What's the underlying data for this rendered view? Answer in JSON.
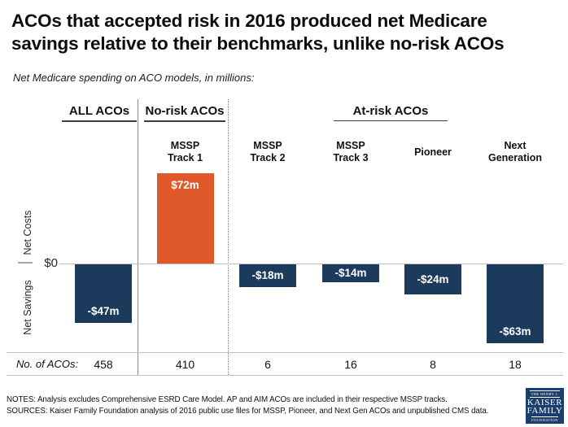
{
  "title_lines": [
    "ACOs that accepted risk in 2016 produced net Medicare",
    "savings relative to their benchmarks, unlike no-risk ACOs"
  ],
  "subtitle": "Net Medicare spending on ACO models, in millions:",
  "section_headers": {
    "all": "ALL ACOs",
    "no_risk": "No-risk ACOs",
    "at_risk": "At-risk ACOs"
  },
  "axis": {
    "zero_label": "$0",
    "upper_label": "Net Costs",
    "lower_label": "Net Savings"
  },
  "footer_row_label": "No. of ACOs:",
  "notes": "NOTES: Analysis excludes Comprehensive ESRD Care Model.  AP and AIM ACOs are included in their respective MSSP tracks.",
  "sources": "SOURCES: Kaiser Family Foundation  analysis of 2016 public use files for MSSP, Pioneer, and Next Gen ACOs and unpublished CMS data.",
  "logo": {
    "top": "THE HENRY J.",
    "name1": "KAISER",
    "name2": "FAMILY",
    "bottom": "FOUNDATION"
  },
  "colors": {
    "navy": "#1c3a5c",
    "orange": "#e0592b",
    "grid_gray": "#bfbfbf",
    "divider_gray": "#8a8a8a",
    "logo_blue": "#1b3e6d"
  },
  "chart_data": {
    "type": "bar",
    "title": "ACOs that accepted risk in 2016 produced net Medicare savings relative to their benchmarks, unlike no-risk ACOs",
    "subtitle": "Net Medicare spending on ACO models, in millions:",
    "xlabel": "",
    "ylabel": "Net Costs (above $0) / Net Savings (below $0)",
    "ylim": [
      -80,
      90
    ],
    "grid": false,
    "legend": "none",
    "categories": [
      "ALL ACOs",
      "MSSP Track 1",
      "MSSP Track 2",
      "MSSP Track 3",
      "Pioneer",
      "Next Generation"
    ],
    "category_label_lines": [
      [],
      [
        "MSSP",
        "Track 1"
      ],
      [
        "MSSP",
        "Track 2"
      ],
      [
        "MSSP",
        "Track 3"
      ],
      [
        "Pioneer"
      ],
      [
        "Next",
        "Generation"
      ]
    ],
    "sections": [
      {
        "label": "ALL ACOs",
        "columns": [
          0
        ]
      },
      {
        "label": "No-risk ACOs",
        "columns": [
          1
        ]
      },
      {
        "label": "At-risk ACOs",
        "columns": [
          2,
          3,
          4,
          5
        ]
      }
    ],
    "values": [
      -47,
      72,
      -18,
      -14,
      -24,
      -63
    ],
    "value_labels": [
      "-$47m",
      "$72m",
      "-$18m",
      "-$14m",
      "-$24m",
      "-$63m"
    ],
    "aco_counts": [
      "458",
      "410",
      "6",
      "16",
      "8",
      "18"
    ],
    "bar_colors": [
      "#1c3a5c",
      "#e0592b",
      "#1c3a5c",
      "#1c3a5c",
      "#1c3a5c",
      "#1c3a5c"
    ]
  }
}
